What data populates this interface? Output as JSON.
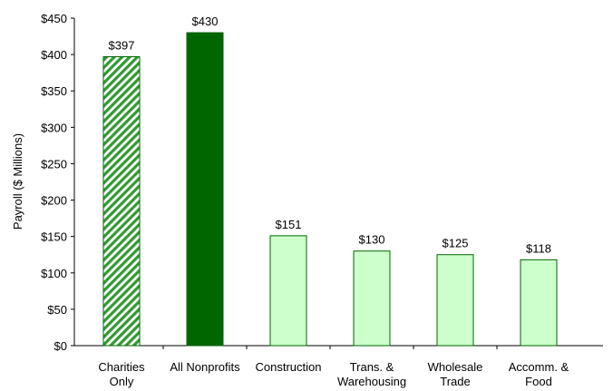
{
  "chart_data": {
    "type": "bar",
    "y_label": "Payroll ($ Millions)",
    "categories": [
      "Charities\nOnly",
      "All Nonprofits",
      "Construction",
      "Trans. &\nWarehousing",
      "Wholesale\nTrade",
      "Accomm. &\nFood"
    ],
    "values": [
      397,
      430,
      151,
      130,
      125,
      118
    ],
    "value_labels": [
      "$397",
      "$430",
      "$151",
      "$130",
      "$125",
      "$118"
    ],
    "colors": [
      "#339933",
      "#006600",
      "#ccffcc",
      "#ccffcc",
      "#ccffcc",
      "#ccffcc"
    ],
    "hatched": [
      true,
      false,
      false,
      false,
      false,
      false
    ],
    "ylim": [
      0,
      450
    ],
    "yticks": [
      {
        "value": 0,
        "label": "$0"
      },
      {
        "value": 50,
        "label": "$50"
      },
      {
        "value": 100,
        "label": "$100"
      },
      {
        "value": 150,
        "label": "$150"
      },
      {
        "value": 200,
        "label": "$200"
      },
      {
        "value": 250,
        "label": "$250"
      },
      {
        "value": 300,
        "label": "$300"
      },
      {
        "value": 350,
        "label": "$350"
      },
      {
        "value": 400,
        "label": "$400"
      },
      {
        "value": 450,
        "label": "$450"
      }
    ],
    "grid": false
  }
}
